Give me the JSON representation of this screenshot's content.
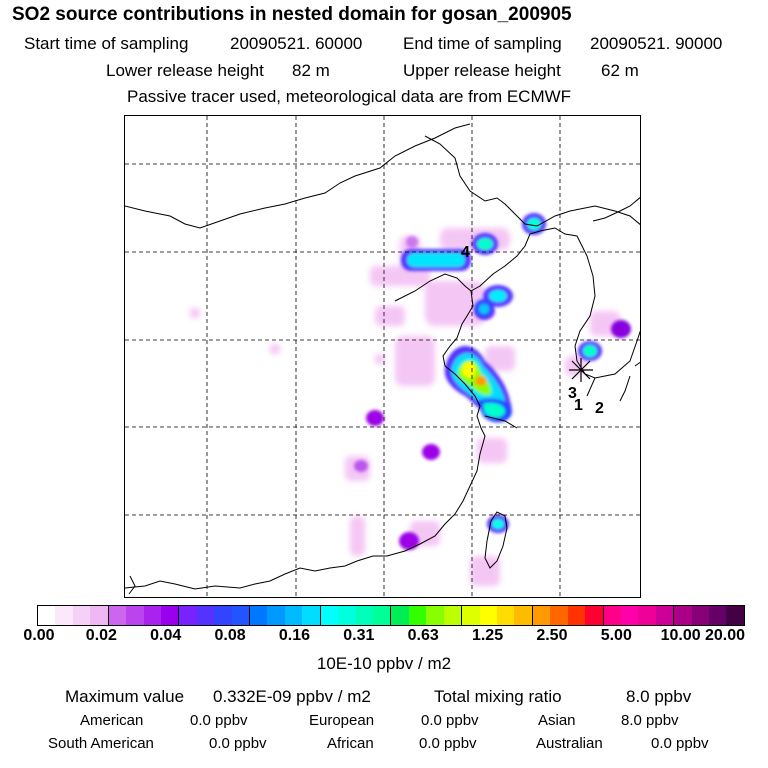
{
  "title": "SO2 source contributions in nested domain for gosan_200905",
  "header": {
    "start_label": "Start time of sampling",
    "start_value": "20090521. 60000",
    "end_label": "End time of sampling",
    "end_value": "20090521. 90000",
    "lower_label": "Lower release height",
    "lower_value": "82 m",
    "upper_label": "Upper release height",
    "upper_value": "62 m",
    "note": "Passive tracer used, meteorological data are from ECMWF"
  },
  "map": {
    "station_markers": [
      "1",
      "2",
      "3",
      "4"
    ]
  },
  "colorbar": {
    "ticks": [
      "0.00",
      "0.02",
      "0.04",
      "0.08",
      "0.16",
      "0.31",
      "0.63",
      "1.25",
      "2.50",
      "5.00",
      "10.00",
      "20.00"
    ],
    "colors": [
      "#ffffff",
      "#fbe8fb",
      "#f6d1f7",
      "#f0b8f2",
      "#cc66ee",
      "#bb44ee",
      "#aa22ee",
      "#9900ee",
      "#7722ff",
      "#5533ff",
      "#3344ff",
      "#2255ff",
      "#0077ff",
      "#0099ff",
      "#00bbff",
      "#00ddff",
      "#00ffff",
      "#00ffdd",
      "#00ffbb",
      "#00ff99",
      "#00ee55",
      "#33ff00",
      "#88ff00",
      "#bbff00",
      "#ddff00",
      "#ffff00",
      "#ffdd00",
      "#ffbb00",
      "#ff9900",
      "#ff6600",
      "#ff3300",
      "#ff0033",
      "#ff0088",
      "#ff00aa",
      "#ee0099",
      "#cc0099",
      "#aa0088",
      "#880077",
      "#660066",
      "#440044"
    ],
    "units": "10E-10 ppbv / m2"
  },
  "stats": {
    "max_label": "Maximum value",
    "max_value": "0.332E-09 ppbv / m2",
    "total_label": "Total mixing ratio",
    "total_value": "8.0 ppbv",
    "regions": [
      {
        "name": "American",
        "value": "0.0 ppbv"
      },
      {
        "name": "European",
        "value": "0.0 ppbv"
      },
      {
        "name": "Asian",
        "value": "8.0 ppbv"
      },
      {
        "name": "South American",
        "value": "0.0 ppbv"
      },
      {
        "name": "African",
        "value": "0.0 ppbv"
      },
      {
        "name": "Australian",
        "value": "0.0 ppbv"
      }
    ]
  }
}
